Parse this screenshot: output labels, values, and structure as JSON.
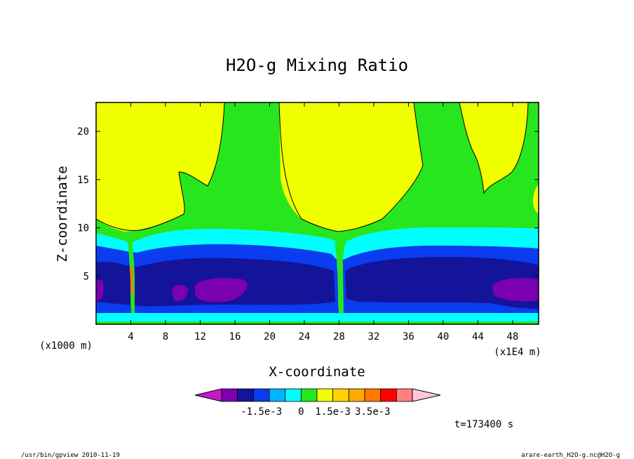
{
  "chart_data": {
    "type": "contour",
    "title": "H2O-g Mixing Ratio",
    "xlabel": "X-coordinate",
    "ylabel": "Z-coordinate",
    "x_unit_label": "(x1000 m)",
    "x_scale_label": "(x1E4 m)",
    "time_label": "t=173400 s",
    "x_ticks": [
      "4",
      "8",
      "12",
      "16",
      "20",
      "24",
      "28",
      "32",
      "36",
      "40",
      "44",
      "48"
    ],
    "y_ticks": [
      "5",
      "10",
      "15",
      "20"
    ],
    "xlim": [
      0,
      51
    ],
    "ylim": [
      0,
      23
    ],
    "colorbar": {
      "colors": [
        "#c71ac7",
        "#7a00b0",
        "#14149a",
        "#0a3cf0",
        "#00b4ff",
        "#00ffff",
        "#28e61e",
        "#f0ff00",
        "#ffd200",
        "#ffaa00",
        "#ff7800",
        "#ff0000",
        "#ff8080",
        "#ffc8dc"
      ],
      "labels": [
        "-1.5e-3",
        "0",
        "1.5e-3",
        "3.5e-3"
      ]
    }
  },
  "footer": {
    "left": "/usr/bin/gpview  2010-11-19",
    "right": "arare-earth_H2O-g.nc@H2O-g"
  }
}
